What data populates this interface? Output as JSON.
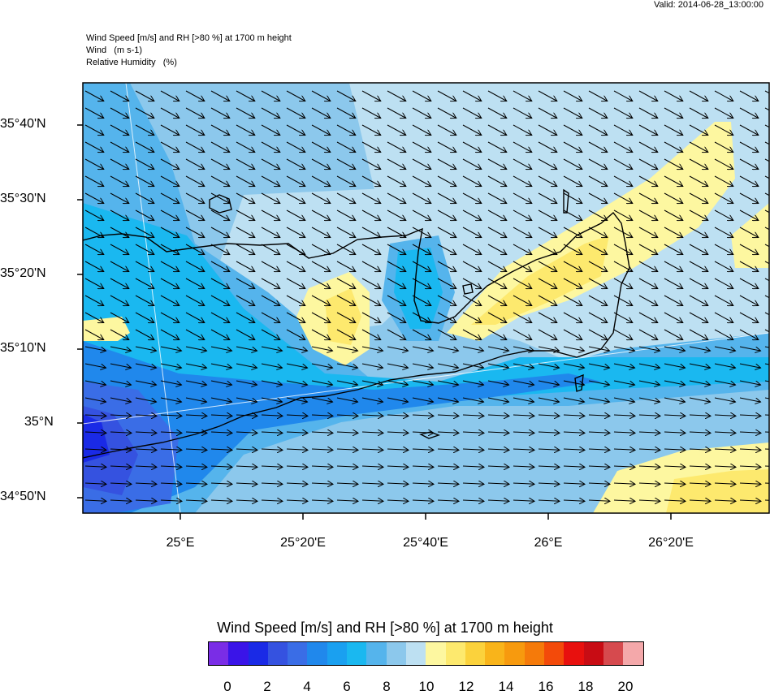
{
  "valid": "Valid: 2014-06-28_13:00:00",
  "header": {
    "line1": "Wind Speed [m/s] and RH [>80 %] at 1700 m height",
    "line2": "Wind   (m s-1)",
    "line3": "Relative Humidity   (%)"
  },
  "map": {
    "lat_labels": [
      "35°40'N",
      "35°30'N",
      "35°20'N",
      "35°10'N",
      "35°N",
      "34°50'N"
    ],
    "lon_labels": [
      "25°E",
      "25°20'E",
      "25°40'E",
      "26°E",
      "26°20'E"
    ],
    "wind_direction": "east-southeast"
  },
  "colorbar": {
    "title": "Wind Speed [m/s] and RH [>80 %] at 1700 m height",
    "colors": [
      "#7a2de6",
      "#3a14e8",
      "#1a2ae6",
      "#3552e0",
      "#3a6de6",
      "#2088ec",
      "#1aa0f0",
      "#1ab8f0",
      "#55b4ec",
      "#8cc8ec",
      "#bde0f2",
      "#fdf7a0",
      "#fde96e",
      "#fbd23c",
      "#f9b41a",
      "#f79a0e",
      "#f57a0a",
      "#f34a0a",
      "#e8100e",
      "#c80c14",
      "#d64a4e",
      "#f4a8aa"
    ],
    "ticks": [
      "0",
      "2",
      "4",
      "6",
      "8",
      "10",
      "12",
      "14",
      "16",
      "18",
      "20"
    ]
  }
}
